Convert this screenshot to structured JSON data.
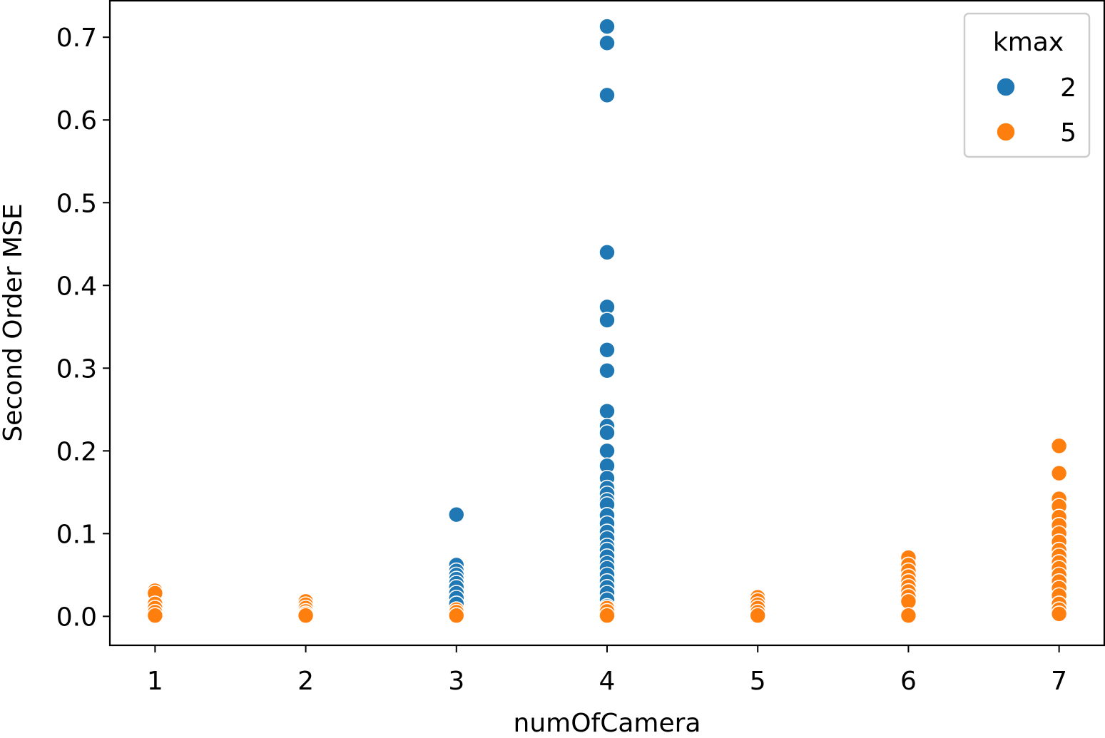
{
  "chart_data": {
    "type": "scatter",
    "title": "",
    "xlabel": "numOfCamera",
    "ylabel": "Second Order MSE",
    "xlim": [
      0.7,
      7.3
    ],
    "ylim": [
      -0.035,
      0.745
    ],
    "xticks": [
      1,
      2,
      3,
      4,
      5,
      6,
      7
    ],
    "yticks": [
      0.0,
      0.1,
      0.2,
      0.3,
      0.4,
      0.5,
      0.6,
      0.7
    ],
    "ytick_labels": [
      "0.0",
      "0.1",
      "0.2",
      "0.3",
      "0.4",
      "0.5",
      "0.6",
      "0.7"
    ],
    "grid": false,
    "legend": {
      "title": "kmax",
      "placement": "top-right"
    },
    "series": [
      {
        "name": "2",
        "color": "#1f77b4",
        "points": [
          [
            3,
            0.123
          ],
          [
            3,
            0.062
          ],
          [
            3,
            0.055
          ],
          [
            3,
            0.05
          ],
          [
            3,
            0.045
          ],
          [
            3,
            0.04
          ],
          [
            3,
            0.035
          ],
          [
            3,
            0.028
          ],
          [
            3,
            0.022
          ],
          [
            3,
            0.015
          ],
          [
            4,
            0.713
          ],
          [
            4,
            0.693
          ],
          [
            4,
            0.63
          ],
          [
            4,
            0.44
          ],
          [
            4,
            0.374
          ],
          [
            4,
            0.358
          ],
          [
            4,
            0.322
          ],
          [
            4,
            0.297
          ],
          [
            4,
            0.248
          ],
          [
            4,
            0.23
          ],
          [
            4,
            0.222
          ],
          [
            4,
            0.2
          ],
          [
            4,
            0.182
          ],
          [
            4,
            0.167
          ],
          [
            4,
            0.155
          ],
          [
            4,
            0.148
          ],
          [
            4,
            0.14
          ],
          [
            4,
            0.135
          ],
          [
            4,
            0.122
          ],
          [
            4,
            0.112
          ],
          [
            4,
            0.102
          ],
          [
            4,
            0.094
          ],
          [
            4,
            0.085
          ],
          [
            4,
            0.08
          ],
          [
            4,
            0.072
          ],
          [
            4,
            0.064
          ],
          [
            4,
            0.058
          ],
          [
            4,
            0.05
          ],
          [
            4,
            0.042
          ],
          [
            4,
            0.035
          ],
          [
            4,
            0.028
          ],
          [
            4,
            0.02
          ],
          [
            4,
            0.012
          ]
        ]
      },
      {
        "name": "5",
        "color": "#ff7f0e",
        "points": [
          [
            1,
            0.031
          ],
          [
            1,
            0.028
          ],
          [
            1,
            0.015
          ],
          [
            1,
            0.01
          ],
          [
            1,
            0.005
          ],
          [
            1,
            0.001
          ],
          [
            2,
            0.018
          ],
          [
            2,
            0.014
          ],
          [
            2,
            0.01
          ],
          [
            2,
            0.006
          ],
          [
            2,
            0.003
          ],
          [
            2,
            0.001
          ],
          [
            3,
            0.008
          ],
          [
            3,
            0.005
          ],
          [
            3,
            0.001
          ],
          [
            4,
            0.01
          ],
          [
            4,
            0.006
          ],
          [
            4,
            0.001
          ],
          [
            5,
            0.023
          ],
          [
            5,
            0.019
          ],
          [
            5,
            0.014
          ],
          [
            5,
            0.01
          ],
          [
            5,
            0.005
          ],
          [
            5,
            0.001
          ],
          [
            6,
            0.071
          ],
          [
            6,
            0.062
          ],
          [
            6,
            0.055
          ],
          [
            6,
            0.048
          ],
          [
            6,
            0.042
          ],
          [
            6,
            0.036
          ],
          [
            6,
            0.03
          ],
          [
            6,
            0.024
          ],
          [
            6,
            0.018
          ],
          [
            6,
            0.001
          ],
          [
            7,
            0.206
          ],
          [
            7,
            0.173
          ],
          [
            7,
            0.142
          ],
          [
            7,
            0.133
          ],
          [
            7,
            0.12
          ],
          [
            7,
            0.11
          ],
          [
            7,
            0.1
          ],
          [
            7,
            0.09
          ],
          [
            7,
            0.08
          ],
          [
            7,
            0.073
          ],
          [
            7,
            0.065
          ],
          [
            7,
            0.058
          ],
          [
            7,
            0.05
          ],
          [
            7,
            0.042
          ],
          [
            7,
            0.034
          ],
          [
            7,
            0.025
          ],
          [
            7,
            0.015
          ],
          [
            7,
            0.008
          ],
          [
            7,
            0.003
          ]
        ]
      }
    ]
  }
}
